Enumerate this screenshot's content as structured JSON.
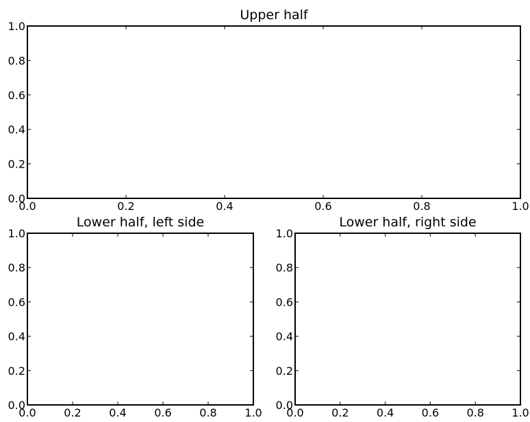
{
  "chart_data": [
    {
      "type": "scatter",
      "title": "Upper half",
      "xlabel": "",
      "ylabel": "",
      "xlim": [
        0.0,
        1.0
      ],
      "ylim": [
        0.0,
        1.0
      ],
      "xticks": [
        "0.0",
        "0.2",
        "0.4",
        "0.6",
        "0.8",
        "1.0"
      ],
      "yticks": [
        "0.0",
        "0.2",
        "0.4",
        "0.6",
        "0.8",
        "1.0"
      ],
      "grid": false,
      "series": []
    },
    {
      "type": "scatter",
      "title": "Lower half, left side",
      "xlabel": "",
      "ylabel": "",
      "xlim": [
        0.0,
        1.0
      ],
      "ylim": [
        0.0,
        1.0
      ],
      "xticks": [
        "0.0",
        "0.2",
        "0.4",
        "0.6",
        "0.8",
        "1.0"
      ],
      "yticks": [
        "0.0",
        "0.2",
        "0.4",
        "0.6",
        "0.8",
        "1.0"
      ],
      "grid": false,
      "series": []
    },
    {
      "type": "scatter",
      "title": "Lower half, right side",
      "xlabel": "",
      "ylabel": "",
      "xlim": [
        0.0,
        1.0
      ],
      "ylim": [
        0.0,
        1.0
      ],
      "xticks": [
        "0.0",
        "0.2",
        "0.4",
        "0.6",
        "0.8",
        "1.0"
      ],
      "yticks": [
        "0.0",
        "0.2",
        "0.4",
        "0.6",
        "0.8",
        "1.0"
      ],
      "grid": false,
      "series": []
    }
  ]
}
